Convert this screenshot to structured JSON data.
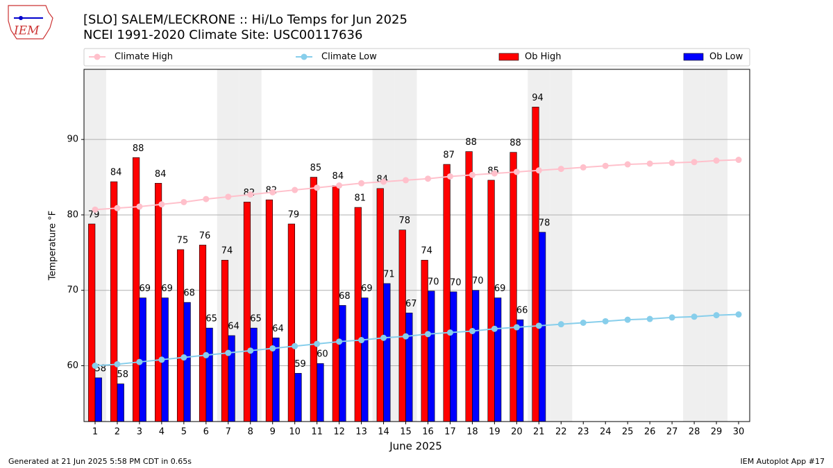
{
  "chart_data": {
    "type": "bar",
    "title": "[SLO] SALEM/LECKRONE :: Hi/Lo Temps for Jun 2025",
    "subtitle": "NCEI 1991-2020 Climate Site: USC00117636",
    "logo_text": "IEM",
    "xlabel": "June 2025",
    "ylabel": "Temperature °F",
    "footer_left": "Generated at 21 Jun 2025 5:58 PM CDT in 0.65s",
    "footer_right": "IEM Autoplot App #17",
    "x": [
      1,
      2,
      3,
      4,
      5,
      6,
      7,
      8,
      9,
      10,
      11,
      12,
      13,
      14,
      15,
      16,
      17,
      18,
      19,
      20,
      21,
      22,
      23,
      24,
      25,
      26,
      27,
      28,
      29,
      30
    ],
    "xlim": [
      0.5,
      30.5
    ],
    "ylim": [
      52.6,
      99.3
    ],
    "yticks": [
      60,
      70,
      80,
      90
    ],
    "grid": true,
    "series": [
      {
        "name": "Climate High",
        "type": "line",
        "color": "#ffc0cb",
        "values": [
          80.7,
          80.9,
          81.1,
          81.4,
          81.7,
          82.1,
          82.4,
          82.7,
          83.0,
          83.3,
          83.6,
          83.9,
          84.2,
          84.4,
          84.6,
          84.8,
          85.1,
          85.3,
          85.5,
          85.7,
          85.9,
          86.1,
          86.3,
          86.5,
          86.7,
          86.8,
          86.9,
          87.0,
          87.2,
          87.3
        ]
      },
      {
        "name": "Climate Low",
        "type": "line",
        "color": "#87ceeb",
        "values": [
          60.0,
          60.2,
          60.5,
          60.8,
          61.1,
          61.4,
          61.7,
          62.0,
          62.3,
          62.6,
          62.9,
          63.2,
          63.4,
          63.7,
          63.9,
          64.2,
          64.4,
          64.6,
          64.9,
          65.1,
          65.3,
          65.5,
          65.7,
          65.9,
          66.1,
          66.2,
          66.4,
          66.5,
          66.7,
          66.8
        ]
      },
      {
        "name": "Ob High",
        "type": "bar",
        "color": "#ff0000",
        "values": [
          78.8,
          84.4,
          87.6,
          84.2,
          75.4,
          76.0,
          74.0,
          81.7,
          82.0,
          78.8,
          85.0,
          83.9,
          81.0,
          83.5,
          78.0,
          74.0,
          86.7,
          88.4,
          84.6,
          88.3,
          94.3,
          null,
          null,
          null,
          null,
          null,
          null,
          null,
          null,
          null
        ],
        "value_labels": [
          "79",
          "84",
          "88",
          "84",
          "75",
          "76",
          "74",
          "82",
          "82",
          "79",
          "85",
          "84",
          "81",
          "84",
          "78",
          "74",
          "87",
          "88",
          "85",
          "88",
          "94",
          null,
          null,
          null,
          null,
          null,
          null,
          null,
          null,
          null
        ]
      },
      {
        "name": "Ob Low",
        "type": "bar",
        "color": "#0000ff",
        "values": [
          58.4,
          57.6,
          69.0,
          69.0,
          68.4,
          65.0,
          64.0,
          65.0,
          63.7,
          59.0,
          60.3,
          68.0,
          69.0,
          70.9,
          67.0,
          69.9,
          69.8,
          70.0,
          69.0,
          66.1,
          77.7,
          null,
          null,
          null,
          null,
          null,
          null,
          null,
          null,
          null
        ],
        "value_labels": [
          "58",
          "58",
          "69",
          "69",
          "68",
          "65",
          "64",
          "65",
          "64",
          "59",
          "60",
          "68",
          "69",
          "71",
          "67",
          "70",
          "70",
          "70",
          "69",
          "66",
          "78",
          null,
          null,
          null,
          null,
          null,
          null,
          null,
          null,
          null
        ]
      }
    ]
  }
}
